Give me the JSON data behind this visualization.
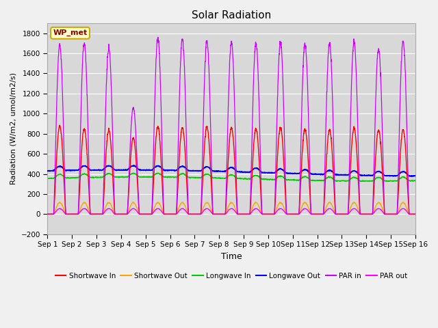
{
  "title": "Solar Radiation",
  "ylabel": "Radiation (W/m2, umol/m2/s)",
  "xlabel": "Time",
  "ylim": [
    -200,
    1900
  ],
  "yticks": [
    -200,
    0,
    200,
    400,
    600,
    800,
    1000,
    1200,
    1400,
    1600,
    1800
  ],
  "num_days": 15,
  "fig_bg_color": "#f0f0f0",
  "plot_bg_color": "#d8d8d8",
  "grid_color": "#ffffff",
  "legend_label": "WP_met",
  "series": {
    "shortwave_in": {
      "color": "#ff0000",
      "label": "Shortwave In"
    },
    "shortwave_out": {
      "color": "#ffa500",
      "label": "Shortwave Out"
    },
    "longwave_in": {
      "color": "#00cc00",
      "label": "Longwave In"
    },
    "longwave_out": {
      "color": "#0000ff",
      "label": "Longwave Out"
    },
    "par_in": {
      "color": "#cc00ff",
      "label": "PAR in"
    },
    "par_out": {
      "color": "#ff00ff",
      "label": "PAR out"
    }
  },
  "sw_peaks": [
    880,
    850,
    840,
    760,
    870,
    860,
    870,
    860,
    850,
    860,
    850,
    840,
    860,
    840,
    840
  ],
  "par_peaks": [
    1690,
    1700,
    1660,
    1060,
    1750,
    1740,
    1720,
    1710,
    1700,
    1710,
    1700,
    1700,
    1720,
    1650,
    1720
  ],
  "xtick_labels": [
    "Sep 1",
    "Sep 2",
    "Sep 3",
    "Sep 4",
    "Sep 5",
    "Sep 6",
    "Sep 7",
    "Sep 8",
    "Sep 9",
    "Sep 10",
    "Sep 11",
    "Sep 12",
    "Sep 13",
    "Sep 14",
    "Sep 15",
    "Sep 16"
  ],
  "xtick_positions": [
    0,
    1,
    2,
    3,
    4,
    5,
    6,
    7,
    8,
    9,
    10,
    11,
    12,
    13,
    14,
    15
  ]
}
